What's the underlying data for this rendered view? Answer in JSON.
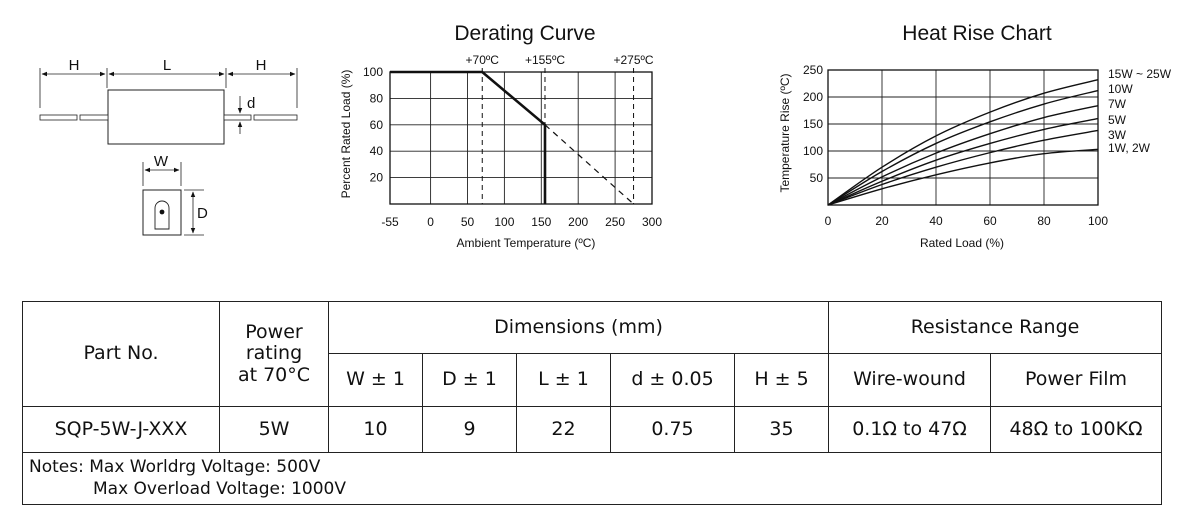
{
  "drawing": {
    "labels": {
      "h_left": "H",
      "l": "L",
      "h_right": "H",
      "d_small": "d",
      "w": "W",
      "d_big": "D"
    }
  },
  "chart_data": [
    {
      "type": "line",
      "title": "Derating Curve",
      "xlabel": "Ambient Temperature (ºC)",
      "ylabel": "Percent Rated Load (%)",
      "xlim": [
        -55,
        300
      ],
      "ylim": [
        0,
        100
      ],
      "xticks": [
        "-55",
        "0",
        "50",
        "100",
        "150",
        "200",
        "250",
        "300"
      ],
      "yticks": [
        "100",
        "80",
        "60",
        "40",
        "20"
      ],
      "grid": true,
      "annotations": [
        "+70ºC",
        "+155ºC",
        "+275ºC"
      ],
      "series": [
        {
          "style": "solid",
          "x": [
            -55,
            70,
            155,
            155
          ],
          "y": [
            100,
            100,
            60,
            0
          ]
        },
        {
          "style": "dashed",
          "x": [
            155,
            275
          ],
          "y": [
            60,
            0
          ]
        }
      ],
      "markers": [
        {
          "x": 70,
          "style": "dashed"
        },
        {
          "x": 155,
          "style": "dashed"
        },
        {
          "x": 275,
          "style": "dashed"
        }
      ]
    },
    {
      "type": "line",
      "title": "Heat Rise Chart",
      "xlabel": "Rated Load (%)",
      "ylabel": "Temperature Rise (ºC)",
      "xlim": [
        0,
        100
      ],
      "ylim": [
        0,
        250
      ],
      "xticks": [
        "0",
        "20",
        "40",
        "60",
        "80",
        "100"
      ],
      "yticks": [
        "250",
        "200",
        "150",
        "100",
        "50"
      ],
      "grid": true,
      "series": [
        {
          "name": "15W ~ 25W",
          "x": [
            0,
            20,
            40,
            60,
            80,
            100
          ],
          "y": [
            0,
            70,
            128,
            172,
            207,
            232
          ]
        },
        {
          "name": "10W",
          "x": [
            0,
            20,
            40,
            60,
            80,
            100
          ],
          "y": [
            0,
            62,
            114,
            154,
            187,
            212
          ]
        },
        {
          "name": "7W",
          "x": [
            0,
            20,
            40,
            60,
            80,
            100
          ],
          "y": [
            0,
            52,
            96,
            132,
            162,
            184
          ]
        },
        {
          "name": "5W",
          "x": [
            0,
            20,
            40,
            60,
            80,
            100
          ],
          "y": [
            0,
            44,
            83,
            114,
            140,
            160
          ]
        },
        {
          "name": "3W",
          "x": [
            0,
            20,
            40,
            60,
            80,
            100
          ],
          "y": [
            0,
            38,
            70,
            97,
            120,
            138
          ]
        },
        {
          "name": "1W, 2W",
          "x": [
            0,
            20,
            40,
            60,
            80,
            100
          ],
          "y": [
            0,
            30,
            56,
            78,
            95,
            103
          ]
        }
      ]
    }
  ],
  "table": {
    "headers": {
      "part_no": "Part No.",
      "power_rating": [
        "Power",
        "rating",
        "at 70°C"
      ],
      "dimensions": "Dimensions (mm)",
      "resistance_range": "Resistance Range",
      "w": "W ± 1",
      "d": "D ± 1",
      "l": "L ± 1",
      "d_small": "d ± 0.05",
      "h": "H ± 5",
      "wire_wound": "Wire-wound",
      "power_film": "Power Film"
    },
    "row": {
      "part_no": "SQP-5W-J-XXX",
      "power": "5W",
      "w": "10",
      "d": "9",
      "l": "22",
      "d_small": "0.75",
      "h": "35",
      "wire_wound": "0.1Ω to 47Ω",
      "power_film": "48Ω to 100KΩ"
    },
    "notes": [
      "Notes: Max Worldrg Voltage: 500V",
      "Max Overload Voltage: 1000V"
    ]
  }
}
